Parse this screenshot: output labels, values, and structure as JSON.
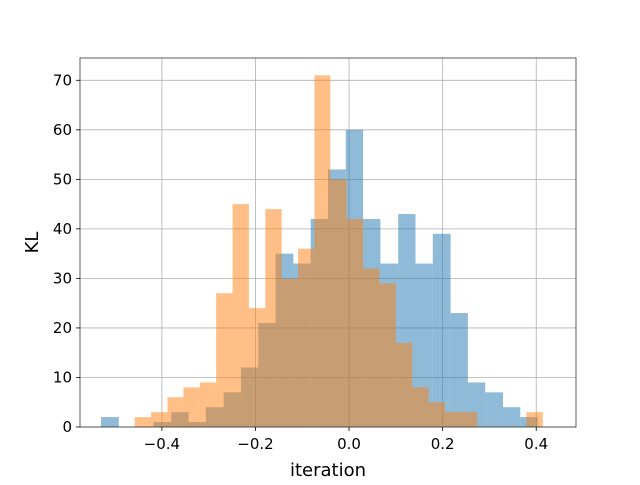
{
  "chart_data": {
    "type": "histogram",
    "xlabel": "iteration",
    "ylabel": "KL",
    "xlim": [
      -0.575,
      0.485
    ],
    "ylim": [
      0,
      74.5
    ],
    "xticks": [
      -0.4,
      -0.2,
      0.0,
      0.2,
      0.4
    ],
    "xtick_labels": [
      "−0.4",
      "−0.2",
      "0.0",
      "0.2",
      "0.4"
    ],
    "yticks": [
      0,
      10,
      20,
      30,
      40,
      50,
      60,
      70
    ],
    "ytick_labels": [
      "0",
      "10",
      "20",
      "30",
      "40",
      "50",
      "60",
      "70"
    ],
    "grid": true,
    "series": [
      {
        "color": "#1f77b4",
        "opacity": 0.5,
        "bins": [
          {
            "x0": -0.53,
            "x1": -0.492,
            "count": 2
          },
          {
            "x0": -0.492,
            "x1": -0.455,
            "count": 0
          },
          {
            "x0": -0.455,
            "x1": -0.418,
            "count": 0
          },
          {
            "x0": -0.418,
            "x1": -0.38,
            "count": 1
          },
          {
            "x0": -0.38,
            "x1": -0.343,
            "count": 3
          },
          {
            "x0": -0.343,
            "x1": -0.306,
            "count": 1
          },
          {
            "x0": -0.306,
            "x1": -0.268,
            "count": 4
          },
          {
            "x0": -0.268,
            "x1": -0.231,
            "count": 7
          },
          {
            "x0": -0.231,
            "x1": -0.194,
            "count": 12
          },
          {
            "x0": -0.194,
            "x1": -0.157,
            "count": 21
          },
          {
            "x0": -0.157,
            "x1": -0.119,
            "count": 35
          },
          {
            "x0": -0.119,
            "x1": -0.082,
            "count": 33
          },
          {
            "x0": -0.082,
            "x1": -0.045,
            "count": 42
          },
          {
            "x0": -0.045,
            "x1": -0.007,
            "count": 52
          },
          {
            "x0": -0.007,
            "x1": 0.03,
            "count": 60
          },
          {
            "x0": 0.03,
            "x1": 0.067,
            "count": 42
          },
          {
            "x0": 0.067,
            "x1": 0.105,
            "count": 33
          },
          {
            "x0": 0.105,
            "x1": 0.142,
            "count": 43
          },
          {
            "x0": 0.142,
            "x1": 0.179,
            "count": 33
          },
          {
            "x0": 0.179,
            "x1": 0.217,
            "count": 39
          },
          {
            "x0": 0.217,
            "x1": 0.254,
            "count": 23
          },
          {
            "x0": 0.254,
            "x1": 0.291,
            "count": 9
          },
          {
            "x0": 0.291,
            "x1": 0.329,
            "count": 7
          },
          {
            "x0": 0.329,
            "x1": 0.366,
            "count": 4
          },
          {
            "x0": 0.366,
            "x1": 0.403,
            "count": 2
          }
        ]
      },
      {
        "color": "#ff7f0e",
        "opacity": 0.5,
        "bins": [
          {
            "x0": -0.458,
            "x1": -0.423,
            "count": 2
          },
          {
            "x0": -0.423,
            "x1": -0.388,
            "count": 3
          },
          {
            "x0": -0.388,
            "x1": -0.354,
            "count": 6
          },
          {
            "x0": -0.354,
            "x1": -0.319,
            "count": 8
          },
          {
            "x0": -0.319,
            "x1": -0.284,
            "count": 9
          },
          {
            "x0": -0.284,
            "x1": -0.249,
            "count": 27
          },
          {
            "x0": -0.249,
            "x1": -0.214,
            "count": 45
          },
          {
            "x0": -0.214,
            "x1": -0.179,
            "count": 24
          },
          {
            "x0": -0.179,
            "x1": -0.144,
            "count": 44
          },
          {
            "x0": -0.144,
            "x1": -0.109,
            "count": 30
          },
          {
            "x0": -0.109,
            "x1": -0.074,
            "count": 36
          },
          {
            "x0": -0.074,
            "x1": -0.04,
            "count": 71
          },
          {
            "x0": -0.04,
            "x1": -0.005,
            "count": 50
          },
          {
            "x0": -0.005,
            "x1": 0.03,
            "count": 42
          },
          {
            "x0": 0.03,
            "x1": 0.065,
            "count": 32
          },
          {
            "x0": 0.065,
            "x1": 0.1,
            "count": 29
          },
          {
            "x0": 0.1,
            "x1": 0.135,
            "count": 17
          },
          {
            "x0": 0.135,
            "x1": 0.17,
            "count": 8
          },
          {
            "x0": 0.17,
            "x1": 0.205,
            "count": 5
          },
          {
            "x0": 0.205,
            "x1": 0.239,
            "count": 3
          },
          {
            "x0": 0.239,
            "x1": 0.274,
            "count": 3
          },
          {
            "x0": 0.274,
            "x1": 0.309,
            "count": 0
          },
          {
            "x0": 0.309,
            "x1": 0.344,
            "count": 0
          },
          {
            "x0": 0.344,
            "x1": 0.379,
            "count": 0
          },
          {
            "x0": 0.379,
            "x1": 0.414,
            "count": 3
          }
        ]
      }
    ]
  }
}
